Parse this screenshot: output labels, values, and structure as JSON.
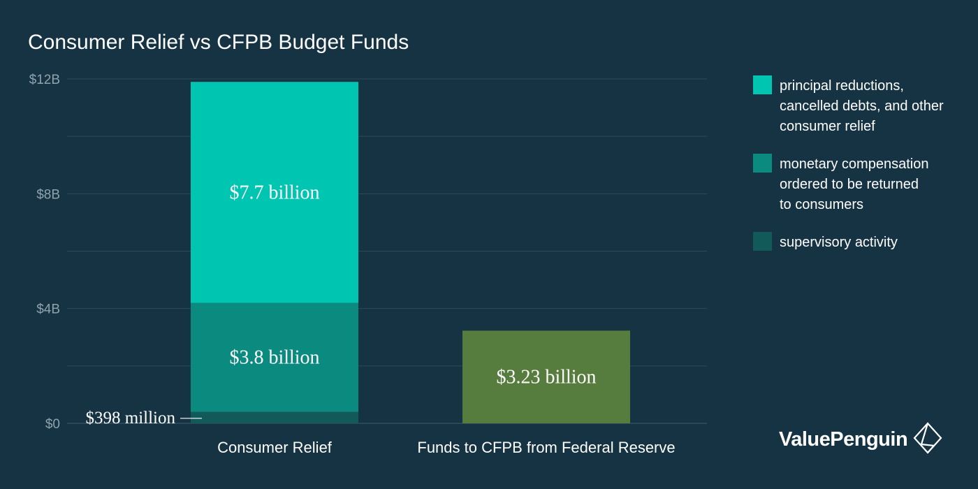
{
  "title": "Consumer Relief vs CFPB Budget Funds",
  "brand": {
    "name": "ValuePenguin",
    "icon": "valuepenguin-logo-icon"
  },
  "colors": {
    "background": "#163344",
    "gridline": "#2e4a5a",
    "tick": "#8fa3ad",
    "consumer_relief": "#00c5b1",
    "monetary_compensation": "#0b8a80",
    "supervisory": "#125959",
    "cfpb": "#567d3d"
  },
  "legend": [
    {
      "label": "principal reductions,\ncancelled debts, and other\nconsumer relief",
      "color": "#00c5b1"
    },
    {
      "label": "monetary compensation\nordered to be returned\nto consumers",
      "color": "#0b8a80"
    },
    {
      "label": "supervisory activity",
      "color": "#125959"
    }
  ],
  "chart_data": {
    "type": "bar",
    "stacked": true,
    "title": "Consumer Relief vs CFPB Budget Funds",
    "categories": [
      "Consumer Relief",
      "Funds to CFPB from Federal Reserve"
    ],
    "ylim": [
      0,
      12
    ],
    "y_ticks": [
      {
        "value": 0,
        "label": "$0"
      },
      {
        "value": 4,
        "label": "$4B"
      },
      {
        "value": 8,
        "label": "$8B"
      },
      {
        "value": 12,
        "label": "$12B"
      }
    ],
    "grid": true,
    "legend_position": "right",
    "segments": [
      {
        "category": 0,
        "value": 0.398,
        "label": "$398 million",
        "label_position": "left",
        "color": "#125959"
      },
      {
        "category": 0,
        "value": 3.8,
        "label": "$3.8 billion",
        "label_position": "inside",
        "color": "#0b8a80"
      },
      {
        "category": 0,
        "value": 7.7,
        "label": "$7.7 billion",
        "label_position": "inside",
        "color": "#00c5b1"
      },
      {
        "category": 1,
        "value": 3.23,
        "label": "$3.23 billion",
        "label_position": "inside",
        "color": "#567d3d"
      }
    ]
  }
}
